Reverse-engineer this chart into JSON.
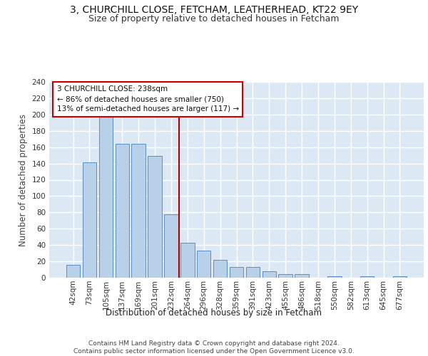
{
  "title_line1": "3, CHURCHILL CLOSE, FETCHAM, LEATHERHEAD, KT22 9EY",
  "title_line2": "Size of property relative to detached houses in Fetcham",
  "xlabel": "Distribution of detached houses by size in Fetcham",
  "ylabel": "Number of detached properties",
  "categories": [
    "42sqm",
    "73sqm",
    "105sqm",
    "137sqm",
    "169sqm",
    "201sqm",
    "232sqm",
    "264sqm",
    "296sqm",
    "328sqm",
    "359sqm",
    "391sqm",
    "423sqm",
    "455sqm",
    "486sqm",
    "518sqm",
    "550sqm",
    "582sqm",
    "613sqm",
    "645sqm",
    "677sqm"
  ],
  "values": [
    16,
    141,
    200,
    164,
    164,
    149,
    78,
    43,
    33,
    22,
    13,
    13,
    8,
    4,
    4,
    0,
    2,
    0,
    2,
    0,
    2
  ],
  "bar_color": "#b8d0e8",
  "bar_edge_color": "#5b8ec4",
  "background_color": "#dce9f5",
  "grid_color": "#ffffff",
  "vline_color": "#aa0000",
  "annotation_text": "3 CHURCHILL CLOSE: 238sqm\n← 86% of detached houses are smaller (750)\n13% of semi-detached houses are larger (117) →",
  "annotation_box_color": "#ffffff",
  "annotation_box_edge": "#cc0000",
  "ylim": [
    0,
    240
  ],
  "yticks": [
    0,
    20,
    40,
    60,
    80,
    100,
    120,
    140,
    160,
    180,
    200,
    220,
    240
  ],
  "footer": "Contains HM Land Registry data © Crown copyright and database right 2024.\nContains public sector information licensed under the Open Government Licence v3.0.",
  "title_fontsize": 10,
  "subtitle_fontsize": 9,
  "axis_label_fontsize": 8.5,
  "tick_fontsize": 7.5,
  "footer_fontsize": 6.5
}
